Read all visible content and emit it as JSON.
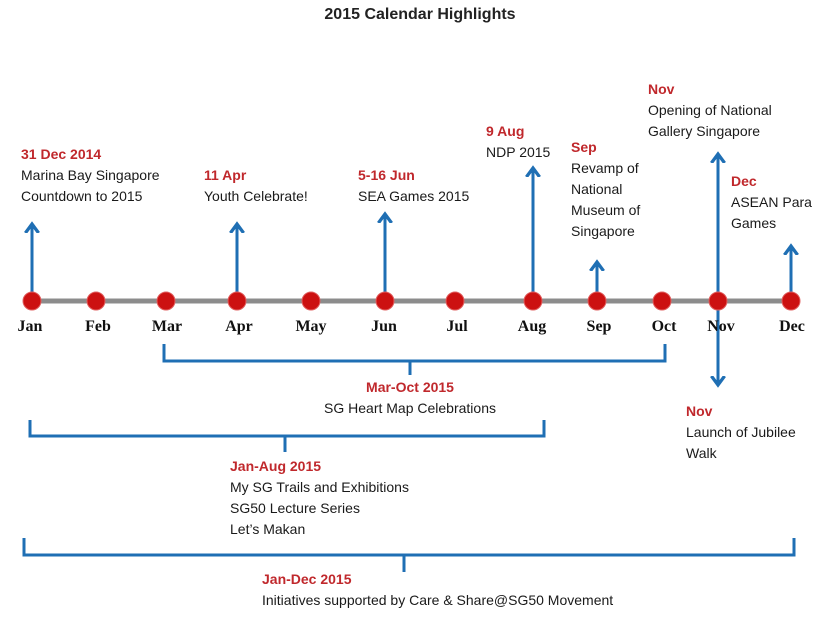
{
  "title": "2015 Calendar Highlights",
  "colors": {
    "accent_blue": "#1f6fb4",
    "marker_red": "#cc1111",
    "date_red": "#c0282c",
    "axis_gray": "#8c8c8c"
  },
  "months": [
    "Jan",
    "Feb",
    "Mar",
    "Apr",
    "May",
    "Jun",
    "Jul",
    "Aug",
    "Sep",
    "Oct",
    "Nov",
    "Dec"
  ],
  "events": {
    "countdown": {
      "date": "31 Dec 2014",
      "lines": [
        "Marina Bay Singapore",
        "Countdown to 2015"
      ]
    },
    "youth": {
      "date": "11 Apr",
      "lines": [
        "Youth Celebrate!"
      ]
    },
    "sea_games": {
      "date": "5-16 Jun",
      "lines": [
        "SEA Games 2015"
      ]
    },
    "ndp": {
      "date": "9 Aug",
      "lines": [
        "NDP 2015"
      ]
    },
    "museum": {
      "date": "Sep",
      "lines": [
        "Revamp of",
        "National",
        "Museum of",
        "Singapore"
      ]
    },
    "gallery": {
      "date": "Nov",
      "lines": [
        "Opening of National",
        "Gallery Singapore"
      ]
    },
    "asean": {
      "date": "Dec",
      "lines": [
        "ASEAN Para",
        "Games"
      ]
    },
    "jubilee": {
      "date": "Nov",
      "lines": [
        "Launch of Jubilee",
        "Walk"
      ]
    }
  },
  "ranges": {
    "heart_map": {
      "date": "Mar-Oct 2015",
      "lines": [
        "SG Heart Map Celebrations"
      ]
    },
    "trails": {
      "date": "Jan-Aug 2015",
      "lines": [
        "My SG Trails and Exhibitions",
        "SG50 Lecture Series",
        "Let’s Makan"
      ]
    },
    "care_share": {
      "date": "Jan-Dec 2015",
      "lines": [
        "Initiatives supported by Care & Share@SG50 Movement"
      ]
    }
  }
}
